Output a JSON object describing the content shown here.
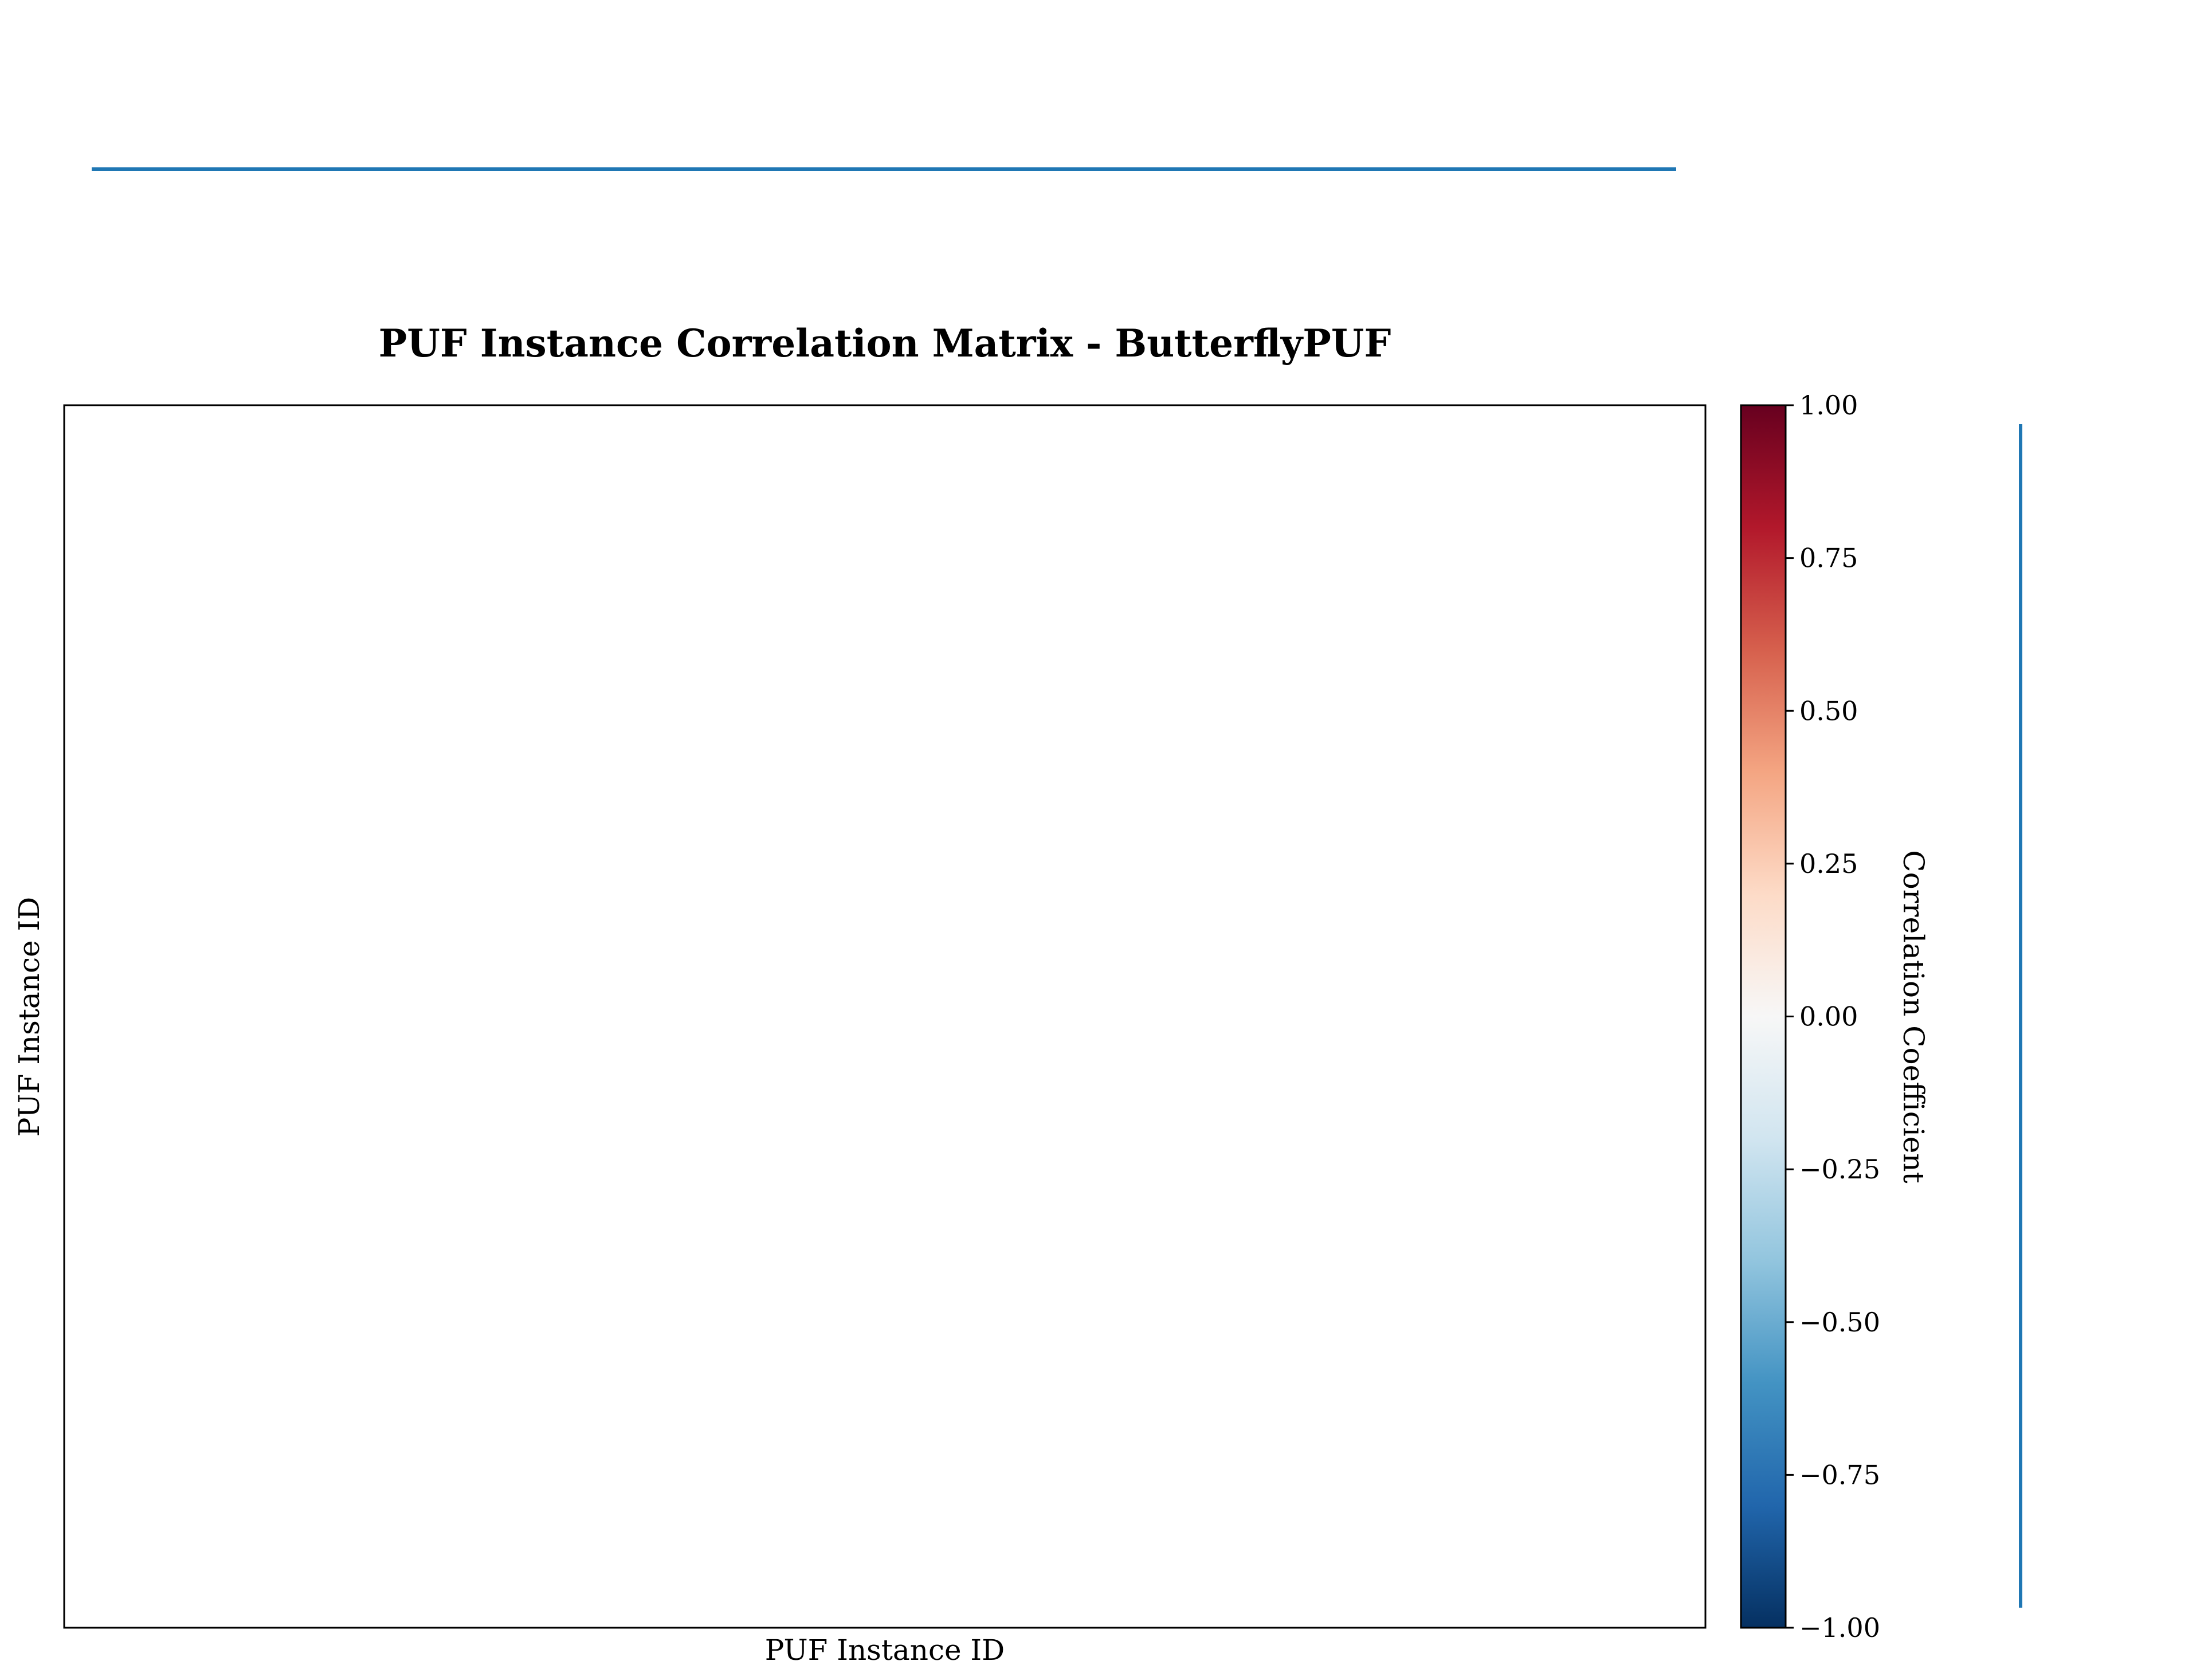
{
  "chart_data": {
    "type": "heatmap",
    "title": "PUF Instance Correlation Matrix - ButterflyPUF",
    "xlabel": "PUF Instance ID",
    "ylabel": "PUF Instance ID",
    "values": [],
    "colorbar": {
      "label": "Correlation Coefficient",
      "colormap": "RdBu_r",
      "range": [
        -1.0,
        1.0
      ],
      "ticks": [
        1.0,
        0.75,
        0.5,
        0.25,
        0.0,
        -0.25,
        -0.5,
        -0.75,
        -1.0
      ],
      "tick_labels": [
        "1.00",
        "0.75",
        "0.50",
        "0.25",
        "0.00",
        "−0.25",
        "−0.50",
        "−0.75",
        "−1.00"
      ]
    },
    "grid": false
  },
  "colors": {
    "decor_line": "#1f77b4",
    "frame": "#000000"
  }
}
